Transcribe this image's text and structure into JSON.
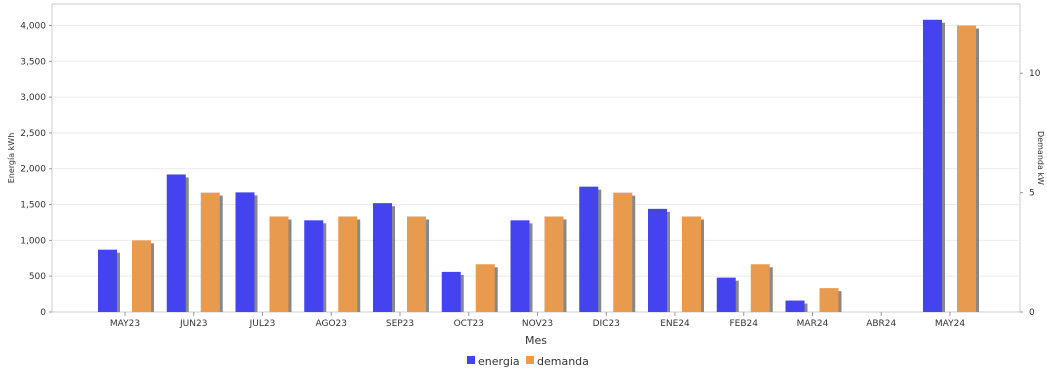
{
  "chart_data": {
    "type": "bar",
    "categories": [
      "MAY23",
      "JUN23",
      "JUL23",
      "AGO23",
      "SEP23",
      "OCT23",
      "NOV23",
      "DIC23",
      "ENE24",
      "FEB24",
      "MAR24",
      "ABR24",
      "MAY24"
    ],
    "series": [
      {
        "name": "energia",
        "axis": "left",
        "color": "#4444ee",
        "values": [
          870,
          1920,
          1670,
          1280,
          1520,
          560,
          1280,
          1750,
          1440,
          480,
          160,
          0,
          4080
        ]
      },
      {
        "name": "demanda",
        "axis": "right",
        "color": "#e89a4f",
        "values": [
          3,
          5,
          4,
          4,
          4,
          2,
          4,
          5,
          4,
          2,
          1,
          0,
          12
        ]
      }
    ],
    "xlabel": "Mes",
    "ylabel": "Energía kWh",
    "y2label": "Demanda kW",
    "ylim": [
      0,
      4300
    ],
    "y2lim": [
      0,
      12.9
    ],
    "yticks": [
      0,
      500,
      1000,
      1500,
      2000,
      2500,
      3000,
      3500,
      4000
    ],
    "yticklabels": [
      "0",
      "500",
      "1,000",
      "1,500",
      "2,000",
      "2,500",
      "3,000",
      "3,500",
      "4,000"
    ],
    "y2ticks": [
      0,
      5,
      10
    ],
    "y2ticklabels": [
      "0",
      "5",
      "10"
    ],
    "grid": true,
    "legend": "bottom"
  }
}
